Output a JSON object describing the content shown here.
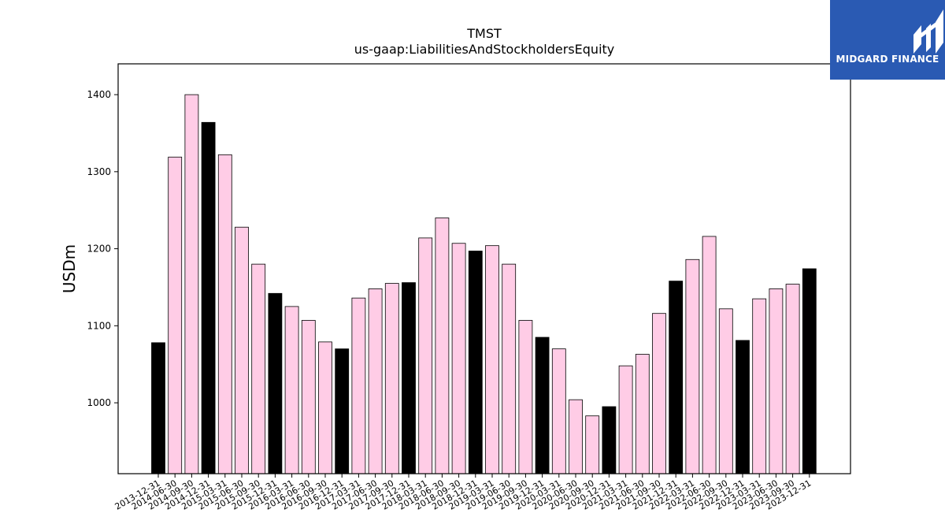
{
  "chart_data": {
    "type": "bar",
    "title": "TMST",
    "subtitle": "us-gaap:LiabilitiesAndStockholdersEquity",
    "ylabel": "USDm",
    "xlabel": "",
    "ylim": [
      908,
      1440
    ],
    "yticks": [
      1000,
      1100,
      1200,
      1300,
      1400
    ],
    "colors": {
      "quarter": "#ffcce6",
      "year_end": "#000000",
      "edge": "#000000"
    },
    "categories": [
      "2013-12-31",
      "2014-06-30",
      "2014-09-30",
      "2014-12-31",
      "2015-03-31",
      "2015-06-30",
      "2015-09-30",
      "2015-12-31",
      "2016-03-31",
      "2016-06-30",
      "2016-09-30",
      "2016-12-31",
      "2017-03-31",
      "2017-06-30",
      "2017-09-30",
      "2017-12-31",
      "2018-03-31",
      "2018-06-30",
      "2018-09-30",
      "2018-12-31",
      "2019-03-31",
      "2019-06-30",
      "2019-09-30",
      "2019-12-31",
      "2020-03-31",
      "2020-06-30",
      "2020-09-30",
      "2020-12-31",
      "2021-03-31",
      "2021-06-30",
      "2021-09-30",
      "2021-12-31",
      "2022-03-31",
      "2022-06-30",
      "2022-09-30",
      "2022-12-31",
      "2023-03-31",
      "2023-06-30",
      "2023-09-30",
      "2023-12-31"
    ],
    "values": [
      1078,
      1319,
      1400,
      1364,
      1322,
      1228,
      1180,
      1142,
      1125,
      1107,
      1079,
      1070,
      1136,
      1148,
      1155,
      1156,
      1214,
      1240,
      1207,
      1197,
      1204,
      1180,
      1107,
      1085,
      1070,
      1004,
      983,
      995,
      1048,
      1063,
      1116,
      1158,
      1186,
      1216,
      1122,
      1081,
      1135,
      1148,
      1154,
      1174
    ],
    "highlight": [
      true,
      false,
      false,
      true,
      false,
      false,
      false,
      true,
      false,
      false,
      false,
      true,
      false,
      false,
      false,
      true,
      false,
      false,
      false,
      true,
      false,
      false,
      false,
      true,
      false,
      false,
      false,
      true,
      false,
      false,
      false,
      true,
      false,
      false,
      false,
      true,
      false,
      false,
      false,
      true
    ]
  },
  "logo": {
    "text": "MIDGARD FINANCE",
    "background": "#2a5ab3"
  }
}
